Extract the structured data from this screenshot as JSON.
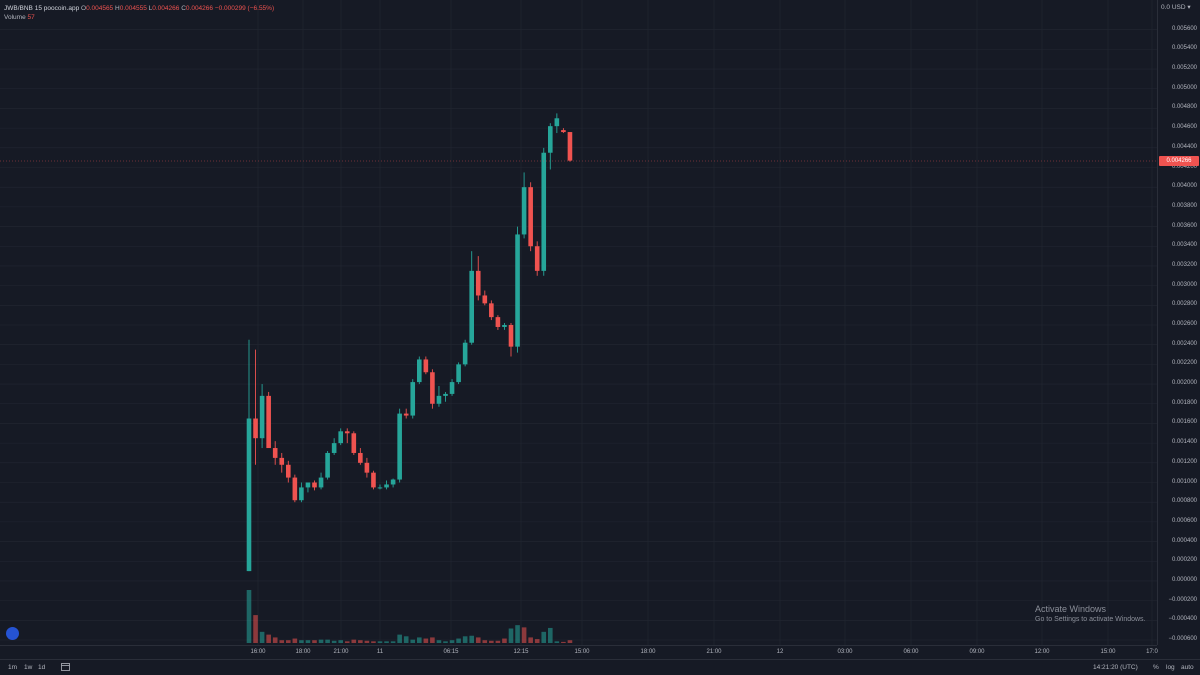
{
  "legend": {
    "symbol": "JWB/BNB",
    "interval": "15",
    "source": "poocoin.app",
    "o_label": "O",
    "o_value": "0.004565",
    "h_label": "H",
    "h_value": "0.004555",
    "l_label": "L",
    "l_value": "0.004266",
    "c_label": "C",
    "c_value": "0.004266",
    "change": "−0.000299 (−6.55%)",
    "volume_label": "Volume",
    "volume_value": "57"
  },
  "price_axis": {
    "currency": "0.0 USD ▾",
    "ticks": [
      "0.005600",
      "0.005400",
      "0.005200",
      "0.005000",
      "0.004800",
      "0.004600",
      "0.004400",
      "0.004200",
      "0.004000",
      "0.003800",
      "0.003600",
      "0.003400",
      "0.003200",
      "0.003000",
      "0.002800",
      "0.002600",
      "0.002400",
      "0.002200",
      "0.002000",
      "0.001800",
      "0.001600",
      "0.001400",
      "0.001200",
      "0.001000",
      "0.000800",
      "0.000600",
      "0.000400",
      "0.000200",
      "0.000000",
      "−0.000200",
      "−0.000400",
      "−0.000600"
    ],
    "last_price": "0.004266"
  },
  "time_axis": {
    "ticks": [
      "16:00",
      "18:00",
      "21:00",
      "11",
      "06:15",
      "12:15",
      "15:00",
      "18:00",
      "21:00",
      "12",
      "03:00",
      "06:00",
      "09:00",
      "12:00",
      "15:00",
      "17:0"
    ]
  },
  "bottom_bar": {
    "timeframes": [
      "1m",
      "1w",
      "1d"
    ],
    "clock": "14:21:20 (UTC)",
    "percent": "%",
    "log": "log",
    "auto": "auto"
  },
  "watermark": {
    "title": "Activate Windows",
    "subtitle": "Go to Settings to activate Windows."
  },
  "colors": {
    "up": "#26a69a",
    "down": "#ef5350",
    "background": "#161a25",
    "grid": "#232733"
  },
  "chart_data": {
    "type": "candlestick",
    "title": "JWB/BNB",
    "ylim": [
      -0.0006,
      0.0058
    ],
    "candles": [
      {
        "o": 0.0001,
        "h": 0.00245,
        "l": 0.0001,
        "c": 0.00165
      },
      {
        "o": 0.00165,
        "h": 0.00235,
        "l": 0.00118,
        "c": 0.00145
      },
      {
        "o": 0.00145,
        "h": 0.002,
        "l": 0.00135,
        "c": 0.00188
      },
      {
        "o": 0.00188,
        "h": 0.00192,
        "l": 0.0014,
        "c": 0.00135
      },
      {
        "o": 0.00135,
        "h": 0.00142,
        "l": 0.00118,
        "c": 0.00125
      },
      {
        "o": 0.00125,
        "h": 0.0013,
        "l": 0.0011,
        "c": 0.00118
      },
      {
        "o": 0.00118,
        "h": 0.00122,
        "l": 0.001,
        "c": 0.00105
      },
      {
        "o": 0.00105,
        "h": 0.00108,
        "l": 0.0008,
        "c": 0.00082
      },
      {
        "o": 0.00082,
        "h": 0.001,
        "l": 0.0008,
        "c": 0.00095
      },
      {
        "o": 0.00095,
        "h": 0.001,
        "l": 0.0009,
        "c": 0.001
      },
      {
        "o": 0.001,
        "h": 0.00102,
        "l": 0.00092,
        "c": 0.00095
      },
      {
        "o": 0.00095,
        "h": 0.0011,
        "l": 0.00093,
        "c": 0.00105
      },
      {
        "o": 0.00105,
        "h": 0.00132,
        "l": 0.00103,
        "c": 0.0013
      },
      {
        "o": 0.0013,
        "h": 0.00145,
        "l": 0.00128,
        "c": 0.0014
      },
      {
        "o": 0.0014,
        "h": 0.00155,
        "l": 0.00138,
        "c": 0.00152
      },
      {
        "o": 0.00152,
        "h": 0.00155,
        "l": 0.0014,
        "c": 0.0015
      },
      {
        "o": 0.0015,
        "h": 0.00152,
        "l": 0.00128,
        "c": 0.0013
      },
      {
        "o": 0.0013,
        "h": 0.00135,
        "l": 0.00118,
        "c": 0.0012
      },
      {
        "o": 0.0012,
        "h": 0.00125,
        "l": 0.00105,
        "c": 0.0011
      },
      {
        "o": 0.0011,
        "h": 0.00112,
        "l": 0.00093,
        "c": 0.00095
      },
      {
        "o": 0.00095,
        "h": 0.00098,
        "l": 0.00093,
        "c": 0.00095
      },
      {
        "o": 0.00095,
        "h": 0.00102,
        "l": 0.00093,
        "c": 0.00098
      },
      {
        "o": 0.00098,
        "h": 0.00104,
        "l": 0.00095,
        "c": 0.00103
      },
      {
        "o": 0.00103,
        "h": 0.00175,
        "l": 0.001,
        "c": 0.0017
      },
      {
        "o": 0.0017,
        "h": 0.00175,
        "l": 0.00165,
        "c": 0.00168
      },
      {
        "o": 0.00168,
        "h": 0.00205,
        "l": 0.00165,
        "c": 0.00202
      },
      {
        "o": 0.00202,
        "h": 0.00228,
        "l": 0.002,
        "c": 0.00225
      },
      {
        "o": 0.00225,
        "h": 0.00228,
        "l": 0.0021,
        "c": 0.00212
      },
      {
        "o": 0.00212,
        "h": 0.00215,
        "l": 0.00175,
        "c": 0.0018
      },
      {
        "o": 0.0018,
        "h": 0.00198,
        "l": 0.00177,
        "c": 0.00188
      },
      {
        "o": 0.00188,
        "h": 0.00192,
        "l": 0.00182,
        "c": 0.0019
      },
      {
        "o": 0.0019,
        "h": 0.00205,
        "l": 0.00188,
        "c": 0.00202
      },
      {
        "o": 0.00202,
        "h": 0.00222,
        "l": 0.002,
        "c": 0.0022
      },
      {
        "o": 0.0022,
        "h": 0.00245,
        "l": 0.00218,
        "c": 0.00242
      },
      {
        "o": 0.00242,
        "h": 0.00335,
        "l": 0.0024,
        "c": 0.00315
      },
      {
        "o": 0.00315,
        "h": 0.0033,
        "l": 0.00285,
        "c": 0.0029
      },
      {
        "o": 0.0029,
        "h": 0.00295,
        "l": 0.0028,
        "c": 0.00282
      },
      {
        "o": 0.00282,
        "h": 0.00285,
        "l": 0.00265,
        "c": 0.00268
      },
      {
        "o": 0.00268,
        "h": 0.0027,
        "l": 0.00255,
        "c": 0.00258
      },
      {
        "o": 0.00258,
        "h": 0.00262,
        "l": 0.00255,
        "c": 0.0026
      },
      {
        "o": 0.0026,
        "h": 0.00262,
        "l": 0.00228,
        "c": 0.00238
      },
      {
        "o": 0.00238,
        "h": 0.0036,
        "l": 0.00232,
        "c": 0.00352
      },
      {
        "o": 0.00352,
        "h": 0.00415,
        "l": 0.00348,
        "c": 0.004
      },
      {
        "o": 0.004,
        "h": 0.00405,
        "l": 0.00335,
        "c": 0.0034
      },
      {
        "o": 0.0034,
        "h": 0.00345,
        "l": 0.0031,
        "c": 0.00315
      },
      {
        "o": 0.00315,
        "h": 0.0044,
        "l": 0.0031,
        "c": 0.00435
      },
      {
        "o": 0.00435,
        "h": 0.00465,
        "l": 0.00418,
        "c": 0.00462
      },
      {
        "o": 0.00462,
        "h": 0.00475,
        "l": 0.00455,
        "c": 0.0047
      },
      {
        "o": 0.00458,
        "h": 0.0046,
        "l": 0.00455,
        "c": 0.00456
      },
      {
        "o": 0.00456,
        "h": 0.00456,
        "l": 0.00426,
        "c": 0.00427
      }
    ],
    "volume": [
      {
        "v": 95,
        "up": true
      },
      {
        "v": 50,
        "up": false
      },
      {
        "v": 20,
        "up": true
      },
      {
        "v": 15,
        "up": false
      },
      {
        "v": 10,
        "up": false
      },
      {
        "v": 5,
        "up": false
      },
      {
        "v": 5,
        "up": false
      },
      {
        "v": 8,
        "up": false
      },
      {
        "v": 5,
        "up": true
      },
      {
        "v": 5,
        "up": true
      },
      {
        "v": 5,
        "up": false
      },
      {
        "v": 6,
        "up": true
      },
      {
        "v": 6,
        "up": true
      },
      {
        "v": 4,
        "up": true
      },
      {
        "v": 5,
        "up": true
      },
      {
        "v": 3,
        "up": false
      },
      {
        "v": 6,
        "up": false
      },
      {
        "v": 5,
        "up": false
      },
      {
        "v": 4,
        "up": false
      },
      {
        "v": 3,
        "up": false
      },
      {
        "v": 3,
        "up": true
      },
      {
        "v": 3,
        "up": true
      },
      {
        "v": 3,
        "up": true
      },
      {
        "v": 15,
        "up": true
      },
      {
        "v": 12,
        "up": true
      },
      {
        "v": 6,
        "up": true
      },
      {
        "v": 10,
        "up": true
      },
      {
        "v": 8,
        "up": false
      },
      {
        "v": 10,
        "up": false
      },
      {
        "v": 5,
        "up": true
      },
      {
        "v": 3,
        "up": true
      },
      {
        "v": 5,
        "up": true
      },
      {
        "v": 8,
        "up": true
      },
      {
        "v": 12,
        "up": true
      },
      {
        "v": 13,
        "up": true
      },
      {
        "v": 10,
        "up": false
      },
      {
        "v": 5,
        "up": false
      },
      {
        "v": 4,
        "up": false
      },
      {
        "v": 4,
        "up": false
      },
      {
        "v": 8,
        "up": false
      },
      {
        "v": 26,
        "up": true
      },
      {
        "v": 32,
        "up": true
      },
      {
        "v": 28,
        "up": false
      },
      {
        "v": 10,
        "up": false
      },
      {
        "v": 7,
        "up": false
      },
      {
        "v": 20,
        "up": true
      },
      {
        "v": 27,
        "up": true
      },
      {
        "v": 3,
        "up": true
      },
      {
        "v": 2,
        "up": false
      },
      {
        "v": 5,
        "up": false
      }
    ]
  }
}
